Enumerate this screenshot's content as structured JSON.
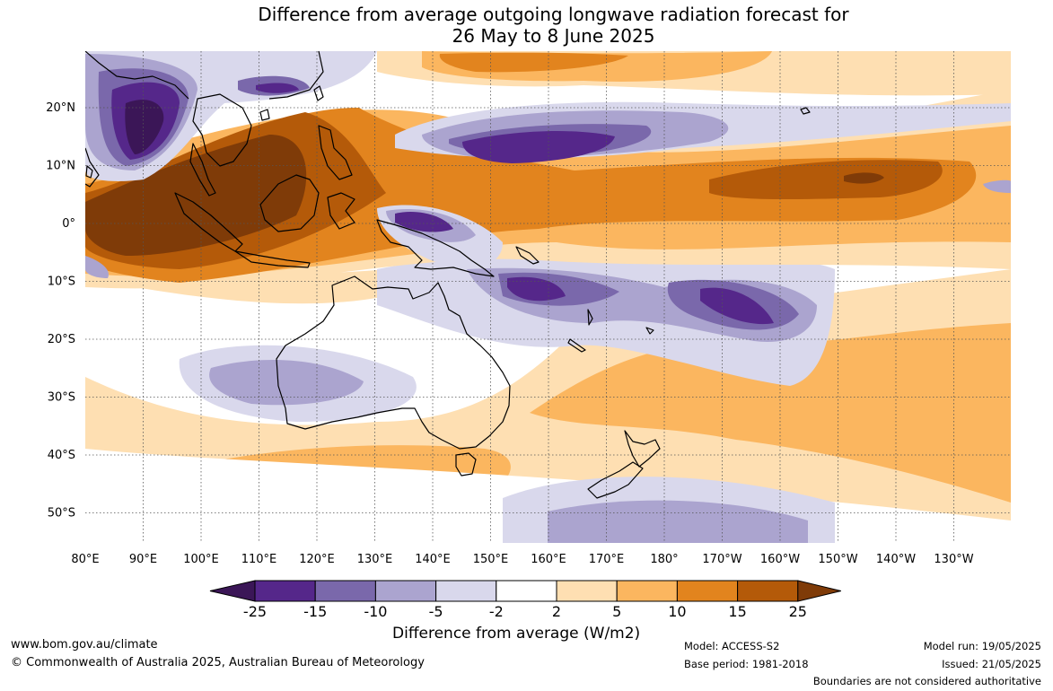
{
  "title_line1": "Difference from average outgoing longwave radiation forecast for",
  "title_line2": "26 May to 8 June 2025",
  "lon_labels": [
    "80°E",
    "90°E",
    "100°E",
    "110°E",
    "120°E",
    "130°E",
    "140°E",
    "150°E",
    "160°E",
    "170°E",
    "180°",
    "170°W",
    "160°W",
    "150°W",
    "140°W",
    "130°W"
  ],
  "lat_labels": [
    "20°N",
    "10°N",
    "0°",
    "10°S",
    "20°S",
    "30°S",
    "40°S",
    "50°S"
  ],
  "colorbar": {
    "title": "Difference from average (W/m2)",
    "ticks": [
      "-25",
      "-15",
      "-10",
      "-5",
      "-2",
      "2",
      "5",
      "10",
      "15",
      "25"
    ],
    "colors": [
      "#3b1657",
      "#55278a",
      "#7a68ab",
      "#aba4cf",
      "#d9d8ec",
      "#ffffff",
      "#fedfb2",
      "#fbb65f",
      "#e2841e",
      "#b45a09",
      "#7f3b08"
    ]
  },
  "footer": {
    "website": "www.bom.gov.au/climate",
    "copyright": "© Commonwealth of Australia 2025, Australian Bureau of Meteorology",
    "model": "Model: ACCESS-S2",
    "base_period": "Base period: 1981-2018",
    "model_run": "Model run: 19/05/2025",
    "issued": "Issued: 21/05/2025",
    "disclaimer": "Boundaries are not considered authoritative"
  }
}
